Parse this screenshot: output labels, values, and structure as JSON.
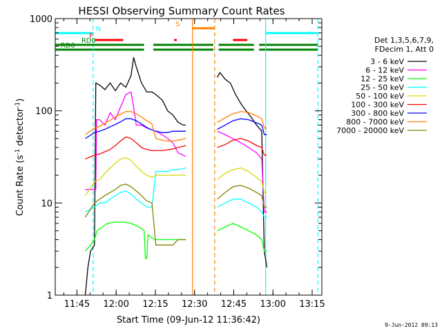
{
  "chart_data": {
    "type": "line",
    "title": "HESSI Observing Summary Count Rates",
    "xlabel": "Start Time (09-Jun-12 11:36:42)",
    "ylabel_prefix": "Count Rate (s",
    "ylabel_sup": "-1",
    "ylabel_mid": " detector",
    "ylabel_sup2": "-1",
    "ylabel_suffix": ")",
    "y_scale": "log",
    "xlim_minutes": [
      0,
      102
    ],
    "ylim": [
      1,
      1000
    ],
    "x_ticks": [
      {
        "m": 8.3,
        "label": "11:45"
      },
      {
        "m": 23.3,
        "label": "12:00"
      },
      {
        "m": 38.3,
        "label": "12:15"
      },
      {
        "m": 53.3,
        "label": "12:30"
      },
      {
        "m": 68.3,
        "label": "12:45"
      },
      {
        "m": 83.3,
        "label": "13:00"
      },
      {
        "m": 98.3,
        "label": "13:15"
      }
    ],
    "y_ticks": [
      {
        "v": 1,
        "label": "1"
      },
      {
        "v": 10,
        "label": "10"
      },
      {
        "v": 100,
        "label": "100"
      },
      {
        "v": 1000,
        "label": "1000"
      }
    ],
    "legend_header": [
      "Det 1,3,5,6,7,9,",
      "FDecim 1, Att 0"
    ],
    "series": [
      {
        "name": "3 - 6 keV",
        "color": "#000000",
        "points": [
          [
            11.5,
            1
          ],
          [
            12.5,
            2
          ],
          [
            13.5,
            3
          ],
          [
            15,
            3.5
          ],
          [
            15.5,
            200
          ],
          [
            17,
            190
          ],
          [
            19,
            170
          ],
          [
            21,
            200
          ],
          [
            23,
            165
          ],
          [
            25,
            200
          ],
          [
            27,
            180
          ],
          [
            29,
            240
          ],
          [
            30,
            380
          ],
          [
            31,
            300
          ],
          [
            33,
            200
          ],
          [
            35,
            160
          ],
          [
            37,
            160
          ],
          [
            38.5,
            150
          ],
          [
            41,
            130
          ],
          [
            43,
            100
          ],
          [
            45,
            90
          ],
          [
            47,
            75
          ],
          [
            49,
            70
          ],
          [
            50,
            70
          ],
          [
            50,
            null
          ],
          [
            62,
            null
          ],
          [
            62,
            230
          ],
          [
            63,
            260
          ],
          [
            65,
            220
          ],
          [
            67,
            200
          ],
          [
            69,
            150
          ],
          [
            71,
            120
          ],
          [
            73,
            100
          ],
          [
            75,
            85
          ],
          [
            77,
            70
          ],
          [
            78,
            65
          ],
          [
            79,
            60
          ],
          [
            80,
            3
          ],
          [
            81,
            2
          ]
        ]
      },
      {
        "name": "6 - 12 keV",
        "color": "#ff00ff",
        "points": [
          [
            11.5,
            14
          ],
          [
            15.5,
            14
          ],
          [
            15.8,
            80
          ],
          [
            17,
            80
          ],
          [
            19,
            70
          ],
          [
            21,
            95
          ],
          [
            23,
            80
          ],
          [
            25,
            110
          ],
          [
            27,
            150
          ],
          [
            29,
            160
          ],
          [
            30,
            110
          ],
          [
            31,
            70
          ],
          [
            33,
            70
          ],
          [
            35,
            65
          ],
          [
            38.5,
            60
          ],
          [
            41,
            55
          ],
          [
            43,
            50
          ],
          [
            45,
            45
          ],
          [
            47,
            35
          ],
          [
            50,
            32
          ],
          [
            50,
            null
          ],
          [
            62,
            null
          ],
          [
            62,
            60
          ],
          [
            65,
            55
          ],
          [
            68,
            50
          ],
          [
            71,
            45
          ],
          [
            74,
            40
          ],
          [
            77,
            35
          ],
          [
            79,
            30
          ],
          [
            80,
            8
          ],
          [
            81,
            8
          ]
        ]
      },
      {
        "name": "12 - 25 keV",
        "color": "#00ff00",
        "points": [
          [
            11.5,
            3
          ],
          [
            13.5,
            3.5
          ],
          [
            15,
            4
          ],
          [
            16,
            5
          ],
          [
            20,
            6
          ],
          [
            23,
            6.2
          ],
          [
            26,
            6.2
          ],
          [
            29,
            6
          ],
          [
            32,
            5.5
          ],
          [
            34,
            5
          ],
          [
            34.5,
            2.5
          ],
          [
            35,
            2.5
          ],
          [
            35.5,
            4.5
          ],
          [
            38,
            4
          ],
          [
            41,
            4
          ],
          [
            44,
            4
          ],
          [
            47,
            4
          ],
          [
            50,
            4
          ],
          [
            50,
            null
          ],
          [
            62,
            null
          ],
          [
            62,
            5
          ],
          [
            65,
            5.5
          ],
          [
            68,
            6
          ],
          [
            71,
            5.5
          ],
          [
            74,
            5
          ],
          [
            77,
            4.5
          ],
          [
            79,
            4
          ],
          [
            80,
            3
          ],
          [
            81,
            3
          ]
        ]
      },
      {
        "name": "25 - 50 keV",
        "color": "#00ffff",
        "points": [
          [
            11.5,
            8
          ],
          [
            15,
            9
          ],
          [
            17,
            10
          ],
          [
            19,
            10
          ],
          [
            21,
            11
          ],
          [
            23,
            12
          ],
          [
            25,
            13
          ],
          [
            27,
            13.5
          ],
          [
            29,
            12.5
          ],
          [
            31,
            11
          ],
          [
            33,
            10
          ],
          [
            35,
            9
          ],
          [
            37,
            9
          ],
          [
            38.5,
            22
          ],
          [
            41,
            22
          ],
          [
            43,
            22
          ],
          [
            45,
            23
          ],
          [
            47,
            23
          ],
          [
            50,
            24
          ],
          [
            50,
            null
          ],
          [
            62,
            null
          ],
          [
            62,
            9
          ],
          [
            65,
            10
          ],
          [
            68,
            11
          ],
          [
            71,
            11
          ],
          [
            74,
            10
          ],
          [
            77,
            9
          ],
          [
            79,
            8
          ],
          [
            80,
            7
          ],
          [
            81,
            7
          ]
        ]
      },
      {
        "name": "50 - 100 keV",
        "color": "#d7d700",
        "points": [
          [
            11.5,
            12
          ],
          [
            15,
            17
          ],
          [
            17,
            18
          ],
          [
            19,
            21
          ],
          [
            21,
            24
          ],
          [
            23,
            27
          ],
          [
            25,
            30
          ],
          [
            27,
            31
          ],
          [
            29,
            29
          ],
          [
            31,
            25
          ],
          [
            33,
            22
          ],
          [
            35,
            20
          ],
          [
            37,
            19
          ],
          [
            38.5,
            20
          ],
          [
            41,
            20
          ],
          [
            44,
            20
          ],
          [
            47,
            20
          ],
          [
            50,
            20
          ],
          [
            50,
            null
          ],
          [
            62,
            null
          ],
          [
            62,
            18
          ],
          [
            65,
            21
          ],
          [
            68,
            23
          ],
          [
            71,
            24
          ],
          [
            74,
            22
          ],
          [
            77,
            19
          ],
          [
            79,
            17
          ],
          [
            80,
            13
          ],
          [
            81,
            13
          ]
        ]
      },
      {
        "name": "100 - 300 keV",
        "color": "#ff0000",
        "points": [
          [
            11.5,
            30
          ],
          [
            15,
            33
          ],
          [
            17,
            34
          ],
          [
            19,
            36
          ],
          [
            21,
            38
          ],
          [
            23,
            42
          ],
          [
            25,
            47
          ],
          [
            27,
            52
          ],
          [
            29,
            50
          ],
          [
            31,
            45
          ],
          [
            33,
            40
          ],
          [
            35,
            38
          ],
          [
            37,
            37
          ],
          [
            38.5,
            37
          ],
          [
            41,
            37
          ],
          [
            44,
            38
          ],
          [
            47,
            40
          ],
          [
            50,
            42
          ],
          [
            50,
            null
          ],
          [
            62,
            null
          ],
          [
            62,
            40
          ],
          [
            65,
            43
          ],
          [
            68,
            48
          ],
          [
            71,
            50
          ],
          [
            74,
            47
          ],
          [
            77,
            42
          ],
          [
            79,
            40
          ],
          [
            80,
            33
          ],
          [
            81,
            33
          ]
        ]
      },
      {
        "name": "300 - 800 keV",
        "color": "#0000ff",
        "points": [
          [
            11.5,
            50
          ],
          [
            15,
            58
          ],
          [
            17,
            60
          ],
          [
            19,
            63
          ],
          [
            21,
            67
          ],
          [
            23,
            71
          ],
          [
            25,
            76
          ],
          [
            27,
            82
          ],
          [
            29,
            82
          ],
          [
            31,
            78
          ],
          [
            33,
            72
          ],
          [
            35,
            66
          ],
          [
            37,
            62
          ],
          [
            38.5,
            60
          ],
          [
            41,
            58
          ],
          [
            43,
            58
          ],
          [
            45,
            60
          ],
          [
            47,
            60
          ],
          [
            50,
            60
          ],
          [
            50,
            null
          ],
          [
            62,
            null
          ],
          [
            62,
            63
          ],
          [
            65,
            70
          ],
          [
            68,
            78
          ],
          [
            71,
            82
          ],
          [
            74,
            80
          ],
          [
            77,
            74
          ],
          [
            79,
            70
          ],
          [
            80,
            55
          ],
          [
            81,
            55
          ]
        ]
      },
      {
        "name": "800 - 7000 keV",
        "color": "#ff8000",
        "points": [
          [
            11.5,
            55
          ],
          [
            15,
            65
          ],
          [
            17,
            68
          ],
          [
            19,
            73
          ],
          [
            21,
            79
          ],
          [
            23,
            86
          ],
          [
            25,
            92
          ],
          [
            27,
            98
          ],
          [
            29,
            98
          ],
          [
            31,
            93
          ],
          [
            33,
            85
          ],
          [
            35,
            78
          ],
          [
            37,
            72
          ],
          [
            38.5,
            50
          ],
          [
            41,
            48
          ],
          [
            43,
            47
          ],
          [
            45,
            47
          ],
          [
            47,
            48
          ],
          [
            50,
            50
          ],
          [
            50,
            null
          ],
          [
            62,
            null
          ],
          [
            62,
            75
          ],
          [
            65,
            84
          ],
          [
            68,
            93
          ],
          [
            71,
            98
          ],
          [
            74,
            96
          ],
          [
            77,
            88
          ],
          [
            79,
            82
          ],
          [
            80,
            65
          ],
          [
            81,
            65
          ]
        ]
      },
      {
        "name": "7000 - 20000 keV",
        "color": "#808000",
        "points": [
          [
            11.5,
            7
          ],
          [
            15,
            10
          ],
          [
            17,
            11
          ],
          [
            19,
            12
          ],
          [
            21,
            13
          ],
          [
            23,
            14
          ],
          [
            25,
            15.5
          ],
          [
            27,
            16
          ],
          [
            29,
            15
          ],
          [
            31,
            13.5
          ],
          [
            33,
            12
          ],
          [
            35,
            10.5
          ],
          [
            37,
            10
          ],
          [
            38.5,
            3.5
          ],
          [
            41,
            3.5
          ],
          [
            43,
            3.5
          ],
          [
            45,
            3.5
          ],
          [
            47,
            4
          ],
          [
            50,
            4
          ],
          [
            50,
            null
          ],
          [
            62,
            null
          ],
          [
            62,
            11
          ],
          [
            65,
            13
          ],
          [
            68,
            15
          ],
          [
            71,
            15.5
          ],
          [
            74,
            14.5
          ],
          [
            77,
            13
          ],
          [
            79,
            12
          ],
          [
            80,
            9
          ],
          [
            81,
            9
          ]
        ]
      }
    ],
    "flag_bars": [
      {
        "label": "N",
        "color": "#00ffff",
        "label_m": 15.5,
        "segments": [
          [
            0,
            14.5
          ],
          [
            80.5,
            100.5
          ]
        ],
        "level": 0
      },
      {
        "label": "F",
        "color": "#ff0000",
        "label_m": 13,
        "segments": [
          [
            15,
            26
          ],
          [
            45.5,
            46.5
          ],
          [
            68,
            73.5
          ]
        ],
        "level": 1
      },
      {
        "label": "S",
        "color": "#ff8000",
        "label_m": 46,
        "segments": [
          [
            52.5,
            61
          ]
        ],
        "level": -1
      },
      {
        "label": "RD0",
        "color": "#008000",
        "label_m": 10,
        "segments": [
          [
            0,
            34
          ],
          [
            37.5,
            60.5
          ],
          [
            62.5,
            76
          ],
          [
            78,
            100.5
          ]
        ],
        "level": 2
      },
      {
        "label": "RD6",
        "color": "#008000",
        "label_m": 2,
        "segments": [
          [
            0,
            34
          ],
          [
            37.5,
            60.5
          ],
          [
            62.5,
            76
          ],
          [
            78,
            100.5
          ]
        ],
        "level": 3
      }
    ],
    "vertical_lines": [
      {
        "m": 0,
        "color": "#00ffff",
        "style": "solid"
      },
      {
        "m": 14.5,
        "color": "#00ffff",
        "style": "dashed"
      },
      {
        "m": 52.5,
        "color": "#ff8000",
        "style": "solid"
      },
      {
        "m": 61,
        "color": "#ff8000",
        "style": "dashed"
      },
      {
        "m": 80.5,
        "color": "#00ffff",
        "style": "solid"
      },
      {
        "m": 100.5,
        "color": "#00ffff",
        "style": "dashed"
      }
    ],
    "date_stamp": "9-Jun-2012 09:13"
  }
}
